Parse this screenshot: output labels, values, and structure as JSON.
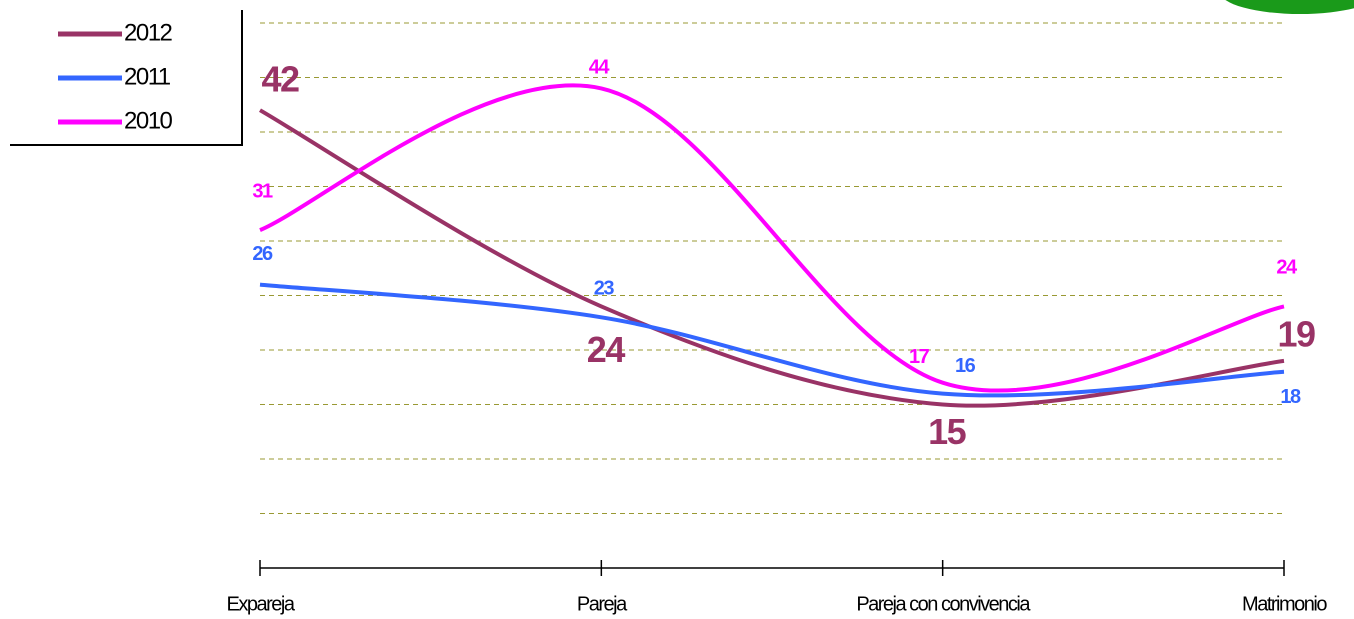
{
  "chart_data": {
    "type": "line",
    "categories": [
      "Expareja",
      "Pareja",
      "Pareja con convivencia",
      "Matrimonio"
    ],
    "series": [
      {
        "name": "2012",
        "color": "#993366",
        "values": [
          42,
          24,
          15,
          19
        ]
      },
      {
        "name": "2011",
        "color": "#3366ff",
        "values": [
          26,
          23,
          16,
          18
        ]
      },
      {
        "name": "2010",
        "color": "#ff00ff",
        "values": [
          31,
          44,
          17,
          24
        ]
      }
    ],
    "ylim": [
      0,
      50
    ],
    "yticks": [
      5,
      10,
      15,
      20,
      25,
      30,
      35,
      40,
      45,
      50
    ],
    "grid": true,
    "smooth": true,
    "legend": "top-left"
  }
}
